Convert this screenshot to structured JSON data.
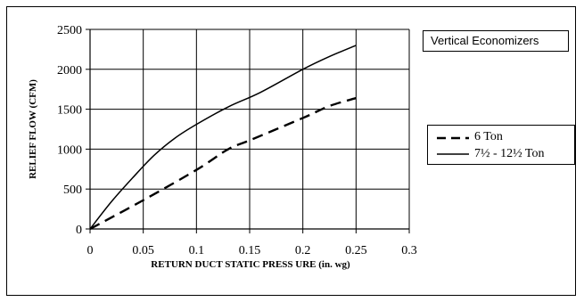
{
  "chart_data": {
    "type": "line",
    "title": "",
    "annotation": "Vertical Economizers",
    "xlabel": "RETURN DUCT STATIC PRESS URE (in. wg)",
    "ylabel": "RELIEF FLOW (CFM)",
    "xlim": [
      0,
      0.3
    ],
    "ylim": [
      0,
      2500
    ],
    "xticks": [
      0,
      0.05,
      0.1,
      0.15,
      0.2,
      0.25,
      0.3
    ],
    "xtick_labels": [
      "0",
      "0.05",
      "0.1",
      "0.15",
      "0.2",
      "0.25",
      "0.3"
    ],
    "yticks": [
      0,
      500,
      1000,
      1500,
      2000,
      2500
    ],
    "ytick_labels": [
      "0",
      "500",
      "1000",
      "1500",
      "2000",
      "2500"
    ],
    "grid": true,
    "legend_position": "right",
    "series": [
      {
        "name": "6 Ton",
        "style": "dashed",
        "color": "#000000",
        "x": [
          0,
          0.05,
          0.1,
          0.13,
          0.15,
          0.2,
          0.225,
          0.25
        ],
        "y": [
          0,
          360,
          740,
          1000,
          1110,
          1390,
          1540,
          1640
        ]
      },
      {
        "name": "7½ - 12½ Ton",
        "style": "solid",
        "color": "#000000",
        "x": [
          0,
          0.02,
          0.04,
          0.06,
          0.08,
          0.1,
          0.13,
          0.16,
          0.2,
          0.225,
          0.25
        ],
        "y": [
          0,
          340,
          640,
          920,
          1140,
          1310,
          1530,
          1710,
          2000,
          2160,
          2300
        ]
      }
    ]
  }
}
